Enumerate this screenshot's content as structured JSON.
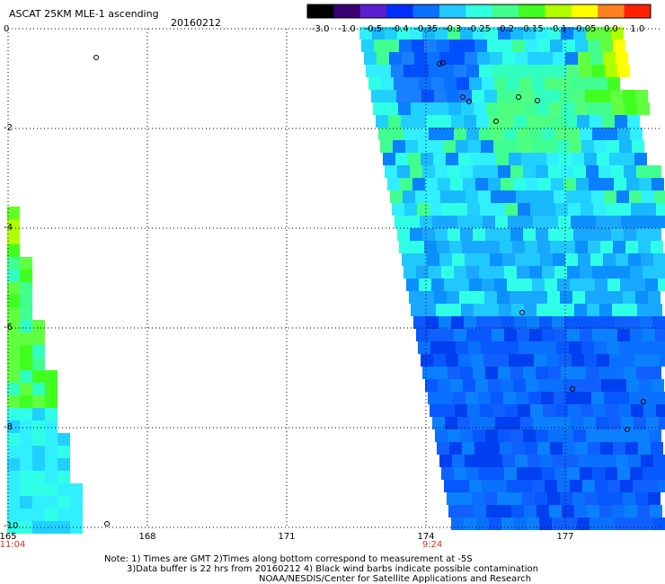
{
  "header": {
    "title": "ASCAT 25KM MLE-1 ascending",
    "date": "20160212"
  },
  "colorbar": {
    "labels": [
      "-3.0",
      "-1.0",
      "-0.5",
      "-0.4",
      "-0.35",
      "-0.3",
      "-0.25",
      "-0.2",
      "-0.15",
      "-0.1",
      "-0.05",
      "0.0",
      "1.0"
    ],
    "colors": [
      "#000000",
      "#3a0070",
      "#5a20d0",
      "#0030ff",
      "#0a70ff",
      "#20c8ff",
      "#30ffe0",
      "#40ff90",
      "#40ff20",
      "#b0ff00",
      "#ffff00",
      "#ff8020",
      "#ff2000"
    ]
  },
  "axes": {
    "y_ticks": [
      "0",
      "-2",
      "-4",
      "-6",
      "-8",
      "-10"
    ],
    "x_ticks": [
      "165",
      "168",
      "171",
      "174",
      "177"
    ],
    "time_labels": [
      "11:04",
      "9:24"
    ],
    "time_color": "#d83020"
  },
  "notes": {
    "line1": "Note: 1) Times are GMT 2)Times along bottom correspond to measurement at -5S",
    "line2": "3)Data buffer is 22 hrs from 20160212 4) Black wind barbs indicate possible contamination",
    "line3": "NOAA/NESDIS/Center for Satellite Applications and Research"
  }
}
